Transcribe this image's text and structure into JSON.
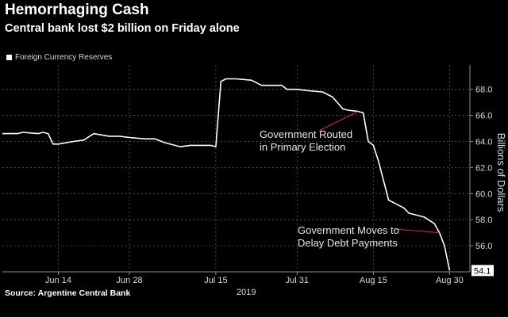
{
  "header": {
    "title": "Hemorrhaging Cash",
    "subtitle": "Central bank lost $2 billion on Friday alone"
  },
  "source": "Source: Argentine Central Bank",
  "chart_data": {
    "type": "line",
    "legend": {
      "label": "Foreign Currency Reserves",
      "placement": "top-left"
    },
    "x_year_label": "2019",
    "x_ticks": [
      {
        "date": "2019-06-14",
        "label": "Jun 14"
      },
      {
        "date": "2019-06-28",
        "label": "Jun 28"
      },
      {
        "date": "2019-07-15",
        "label": "Jul 15"
      },
      {
        "date": "2019-07-31",
        "label": "Jul 31"
      },
      {
        "date": "2019-08-15",
        "label": "Aug 15"
      },
      {
        "date": "2019-08-30",
        "label": "Aug 30"
      }
    ],
    "y_ticks": [
      "56.0",
      "58.0",
      "60.0",
      "62.0",
      "64.0",
      "66.0",
      "68.0"
    ],
    "ylabel": "Billions of Dollars",
    "ylim": [
      54.0,
      69.5
    ],
    "xlim": [
      "2019-06-03",
      "2019-09-03"
    ],
    "grid": "dashed",
    "series": [
      {
        "name": "Foreign Currency Reserves",
        "color": "#ffffff",
        "points": [
          [
            "2019-06-03",
            64.6
          ],
          [
            "2019-06-06",
            64.6
          ],
          [
            "2019-06-07",
            64.7
          ],
          [
            "2019-06-10",
            64.6
          ],
          [
            "2019-06-11",
            64.7
          ],
          [
            "2019-06-12",
            64.6
          ],
          [
            "2019-06-13",
            63.8
          ],
          [
            "2019-06-14",
            63.8
          ],
          [
            "2019-06-17",
            64.0
          ],
          [
            "2019-06-19",
            64.1
          ],
          [
            "2019-06-21",
            64.6
          ],
          [
            "2019-06-24",
            64.4
          ],
          [
            "2019-06-26",
            64.4
          ],
          [
            "2019-06-28",
            64.3
          ],
          [
            "2019-07-01",
            64.2
          ],
          [
            "2019-07-03",
            64.2
          ],
          [
            "2019-07-05",
            63.9
          ],
          [
            "2019-07-08",
            63.6
          ],
          [
            "2019-07-10",
            63.7
          ],
          [
            "2019-07-12",
            63.7
          ],
          [
            "2019-07-14",
            63.7
          ],
          [
            "2019-07-15",
            63.6
          ],
          [
            "2019-07-16",
            68.6
          ],
          [
            "2019-07-17",
            68.8
          ],
          [
            "2019-07-19",
            68.8
          ],
          [
            "2019-07-22",
            68.7
          ],
          [
            "2019-07-24",
            68.3
          ],
          [
            "2019-07-26",
            68.3
          ],
          [
            "2019-07-28",
            68.3
          ],
          [
            "2019-07-29",
            68.0
          ],
          [
            "2019-07-31",
            68.0
          ],
          [
            "2019-08-02",
            67.9
          ],
          [
            "2019-08-05",
            67.8
          ],
          [
            "2019-08-07",
            67.4
          ],
          [
            "2019-08-09",
            66.5
          ],
          [
            "2019-08-10",
            66.4
          ],
          [
            "2019-08-12",
            66.3
          ],
          [
            "2019-08-13",
            66.2
          ],
          [
            "2019-08-14",
            64.0
          ],
          [
            "2019-08-15",
            63.7
          ],
          [
            "2019-08-16",
            62.5
          ],
          [
            "2019-08-18",
            59.5
          ],
          [
            "2019-08-20",
            59.1
          ],
          [
            "2019-08-21",
            58.9
          ],
          [
            "2019-08-22",
            58.5
          ],
          [
            "2019-08-25",
            58.2
          ],
          [
            "2019-08-27",
            57.7
          ],
          [
            "2019-08-28",
            57.0
          ],
          [
            "2019-08-29",
            56.0
          ],
          [
            "2019-08-30",
            54.1
          ]
        ]
      }
    ],
    "last_value_label": "54.1",
    "annotations": [
      {
        "text_lines": [
          "Government Routed",
          "in Primary Election"
        ],
        "target": [
          "2019-08-12",
          66.3
        ]
      },
      {
        "text_lines": [
          "Government Moves to",
          "Delay Debt Payments"
        ],
        "target": [
          "2019-08-28",
          57.0
        ]
      }
    ]
  }
}
